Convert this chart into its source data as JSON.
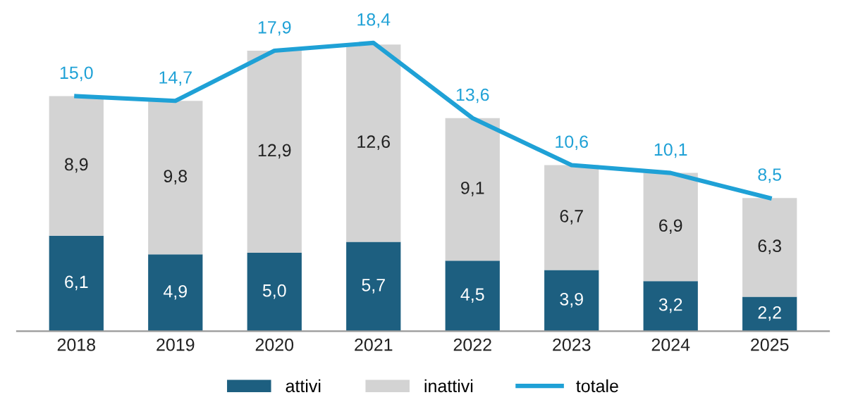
{
  "chart_data": {
    "type": "bar",
    "stacked": true,
    "legend": "bottom",
    "grid": false,
    "categories": [
      "2018",
      "2019",
      "2020",
      "2021",
      "2022",
      "2023",
      "2024",
      "2025"
    ],
    "series": [
      {
        "name": "attivi",
        "color": "#1d5f80",
        "values": [
          6.1,
          4.9,
          5.0,
          5.7,
          4.5,
          3.9,
          3.2,
          2.2
        ],
        "value_labels": [
          "6,1",
          "4,9",
          "5,0",
          "5,7",
          "4,5",
          "3,9",
          "3,2",
          "2,2"
        ]
      },
      {
        "name": "inattivi",
        "color": "#d3d3d3",
        "values": [
          8.9,
          9.8,
          12.9,
          12.6,
          9.1,
          6.7,
          6.9,
          6.3
        ],
        "value_labels": [
          "8,9",
          "9,8",
          "12,9",
          "12,6",
          "9,1",
          "6,7",
          "6,9",
          "6,3"
        ]
      },
      {
        "name": "totale",
        "type": "line",
        "color": "#1fa1d6",
        "values": [
          15.0,
          14.7,
          17.9,
          18.4,
          13.6,
          10.6,
          10.1,
          8.5
        ],
        "value_labels": [
          "15,0",
          "14,7",
          "17,9",
          "18,4",
          "13,6",
          "10,6",
          "10,1",
          "8,5"
        ]
      }
    ]
  }
}
